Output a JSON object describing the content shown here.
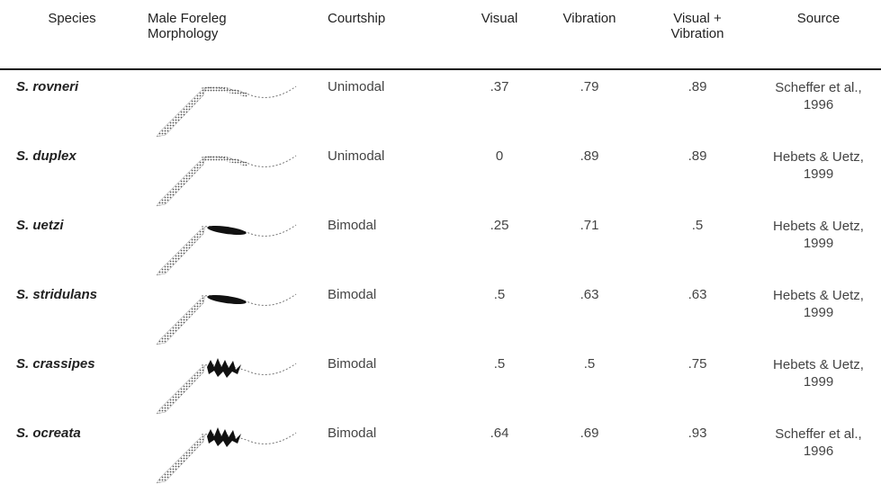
{
  "table": {
    "headers": [
      "Species",
      "Male Foreleg Morphology",
      "Courtship",
      "Visual",
      "Vibration",
      "Visual + Vibration",
      "Source"
    ],
    "rows": [
      [
        "S. rovneri",
        "Unimodal",
        ".37",
        ".79",
        ".89",
        "Scheffer et al., 1996"
      ],
      [
        "S. duplex",
        "Unimodal",
        "0",
        ".89",
        ".89",
        "Hebets & Uetz, 1999"
      ],
      [
        "S. uetzi",
        "Bimodal",
        ".25",
        ".71",
        ".5",
        "Hebets & Uetz, 1999"
      ],
      [
        "S. stridulans",
        "Bimodal",
        ".5",
        ".63",
        ".63",
        "Hebets & Uetz, 1999"
      ],
      [
        "S. crassipes",
        "Bimodal",
        ".5",
        ".5",
        ".75",
        "Hebets & Uetz, 1999"
      ],
      [
        "S. ocreata",
        "Bimodal",
        ".64",
        ".69",
        ".93",
        "Scheffer et al., 1996"
      ]
    ]
  }
}
